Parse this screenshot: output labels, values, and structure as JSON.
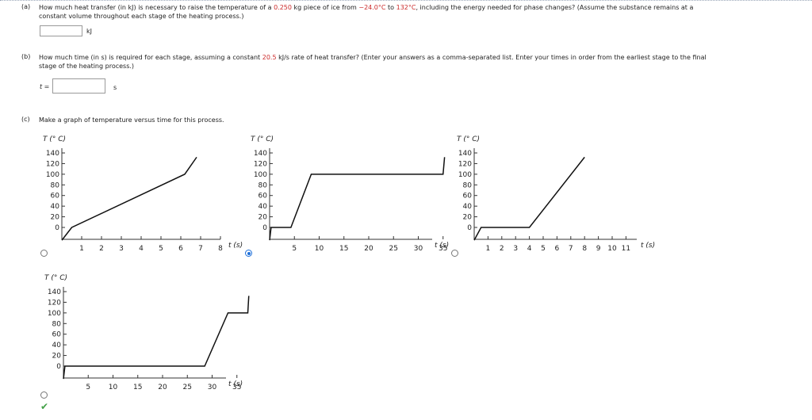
{
  "part_a": {
    "label": "(a)",
    "text_1": "How much heat transfer (in kJ) is necessary to raise the temperature of a ",
    "mass": "0.250",
    "text_2": " kg piece of ice from ",
    "t_start": "−24.0°C",
    "text_3": " to ",
    "t_end": "132°C",
    "text_4": ", including the energy needed for phase changes? (Assume the substance remains at a",
    "line_2": "constant volume throughout each stage of the heating process.)",
    "answer": "",
    "unit": "kJ"
  },
  "part_b": {
    "label": "(b)",
    "text_1": "How much time (in s) is required for each stage, assuming a constant ",
    "rate": "20.5",
    "text_2": " kJ/s rate of heat transfer? (Enter your answers as a comma-separated list. Enter your times in order from the earliest stage to the final",
    "line_2": "stage of the heating process.)",
    "t_label": "t =",
    "answer": "",
    "unit": "s"
  },
  "part_c": {
    "label": "(c)",
    "text": "Make a graph of temperature versus time for this process."
  },
  "answer_feedback": {
    "icon": "checkmark-icon",
    "color": "#43a047"
  },
  "chart_data": [
    {
      "type": "line",
      "option": 1,
      "selected": false,
      "ylabel": "T (° C)",
      "xlabel": "t (s)",
      "yticks": [
        140,
        120,
        100,
        80,
        60,
        40,
        20,
        0
      ],
      "xticks": [
        1,
        2,
        3,
        4,
        5,
        6,
        7,
        8
      ],
      "ylim": [
        -24,
        140
      ],
      "xlim": [
        0,
        8
      ],
      "series": [
        {
          "x": [
            0,
            0.5,
            6.2,
            6.8
          ],
          "y": [
            -24,
            0,
            100,
            132
          ]
        }
      ]
    },
    {
      "type": "line",
      "option": 2,
      "selected": true,
      "ylabel": "T (° C)",
      "xlabel": "t (s)",
      "yticks": [
        140,
        120,
        100,
        80,
        60,
        40,
        20,
        0
      ],
      "xticks": [
        5,
        10,
        15,
        20,
        25,
        30,
        35
      ],
      "ylim": [
        -24,
        140
      ],
      "xlim": [
        0,
        38
      ],
      "series": [
        {
          "x": [
            0,
            0.3,
            4.3,
            8.4,
            35,
            35.3
          ],
          "y": [
            -24,
            0,
            0,
            100,
            100,
            132
          ]
        }
      ]
    },
    {
      "type": "line",
      "option": 3,
      "selected": false,
      "ylabel": "T (° C)",
      "xlabel": "t (s)",
      "yticks": [
        140,
        120,
        100,
        80,
        60,
        40,
        20,
        0
      ],
      "xticks": [
        1,
        2,
        3,
        4,
        5,
        6,
        7,
        8,
        9,
        10,
        11
      ],
      "ylim": [
        -24,
        140
      ],
      "xlim": [
        0,
        11.5
      ],
      "series": [
        {
          "x": [
            0,
            0.5,
            4.0,
            8.0
          ],
          "y": [
            -24,
            0,
            0,
            132
          ]
        }
      ]
    },
    {
      "type": "line",
      "option": 4,
      "selected": false,
      "ylabel": "T (° C)",
      "xlabel": "t (s)",
      "yticks": [
        140,
        120,
        100,
        80,
        60,
        40,
        20,
        0
      ],
      "xticks": [
        5,
        10,
        15,
        20,
        25,
        30,
        35
      ],
      "ylim": [
        -24,
        140
      ],
      "xlim": [
        0,
        38
      ],
      "series": [
        {
          "x": [
            0,
            0.3,
            28.5,
            33.2,
            37.2,
            37.4
          ],
          "y": [
            -24,
            0,
            0,
            100,
            100,
            132
          ]
        }
      ]
    }
  ]
}
